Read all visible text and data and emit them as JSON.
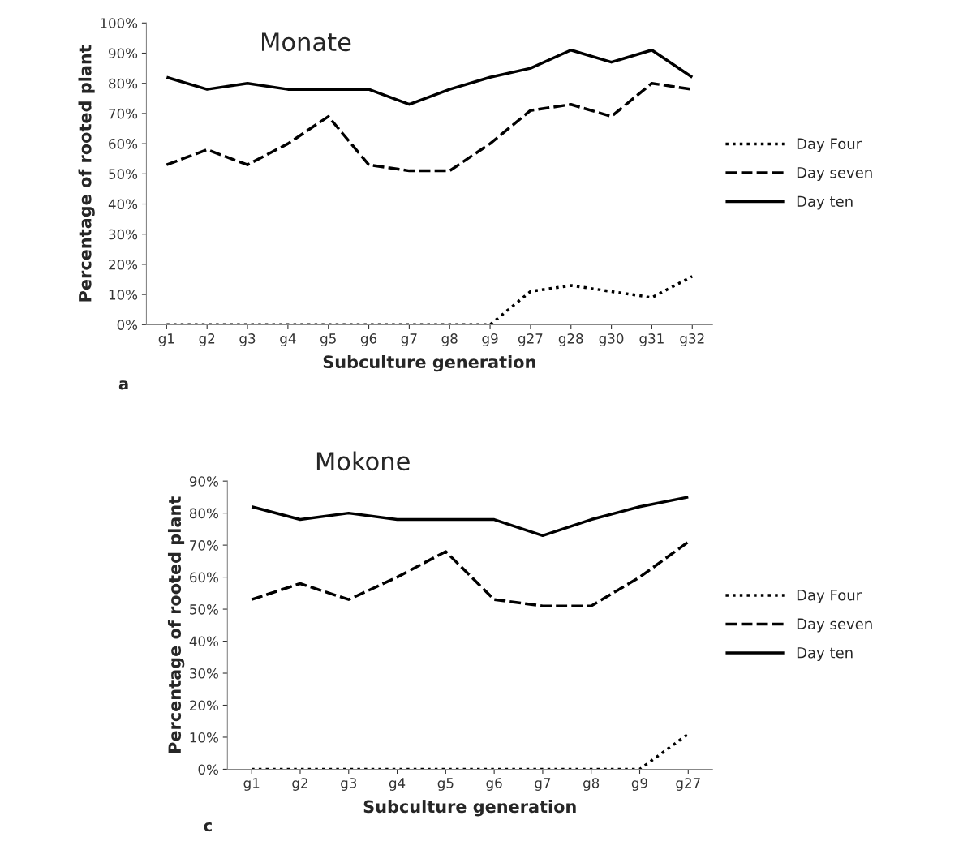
{
  "chart_data": [
    {
      "type": "line",
      "title": "Monate",
      "xlabel": "Subculture generation",
      "ylabel": "Percentage of rooted plant",
      "annotations": [
        "a"
      ],
      "categories": [
        "g1",
        "g2",
        "g3",
        "g4",
        "g5",
        "g6",
        "g7",
        "g8",
        "g9",
        "g27",
        "g28",
        "g30",
        "g31",
        "g32"
      ],
      "ylim": [
        0,
        100
      ],
      "yticks": [
        {
          "value": 0,
          "label": "0%"
        },
        {
          "value": 10,
          "label": "10%"
        },
        {
          "value": 20,
          "label": "20%"
        },
        {
          "value": 30,
          "label": "30%"
        },
        {
          "value": 40,
          "label": "40%"
        },
        {
          "value": 50,
          "label": "50%"
        },
        {
          "value": 60,
          "label": "60%"
        },
        {
          "value": 70,
          "label": "70%"
        },
        {
          "value": 80,
          "label": "80%"
        },
        {
          "value": 90,
          "label": "90%"
        },
        {
          "value": 100,
          "label": "100%"
        }
      ],
      "grid": false,
      "legend": "right",
      "series": [
        {
          "name": "Day Four",
          "color": "#000000",
          "line_style": "dotted",
          "values": [
            0,
            0,
            0,
            0,
            0,
            0,
            0,
            0,
            0,
            11,
            13,
            11,
            9,
            16
          ]
        },
        {
          "name": "Day seven",
          "color": "#000000",
          "line_style": "dashed",
          "values": [
            53,
            58,
            53,
            60,
            69,
            53,
            51,
            51,
            60,
            71,
            73,
            69,
            80,
            78
          ]
        },
        {
          "name": "Day ten",
          "color": "#000000",
          "line_style": "solid",
          "values": [
            82,
            78,
            80,
            78,
            78,
            78,
            73,
            78,
            82,
            85,
            91,
            87,
            91,
            82
          ]
        }
      ]
    },
    {
      "type": "line",
      "title": "Mokone",
      "xlabel": "Subculture generation",
      "ylabel": "Percentage of rooted plant",
      "annotations": [
        "c"
      ],
      "categories": [
        "g1",
        "g2",
        "g3",
        "g4",
        "g5",
        "g6",
        "g7",
        "g8",
        "g9",
        "g27"
      ],
      "ylim": [
        0,
        90
      ],
      "yticks": [
        {
          "value": 0,
          "label": "0%"
        },
        {
          "value": 10,
          "label": "10%"
        },
        {
          "value": 20,
          "label": "20%"
        },
        {
          "value": 30,
          "label": "30%"
        },
        {
          "value": 40,
          "label": "40%"
        },
        {
          "value": 50,
          "label": "50%"
        },
        {
          "value": 60,
          "label": "60%"
        },
        {
          "value": 70,
          "label": "70%"
        },
        {
          "value": 80,
          "label": "80%"
        },
        {
          "value": 90,
          "label": "90%"
        }
      ],
      "grid": false,
      "legend": "right",
      "series": [
        {
          "name": "Day Four",
          "color": "#000000",
          "line_style": "dotted",
          "values": [
            0,
            0,
            0,
            0,
            0,
            0,
            0,
            0,
            0,
            11
          ]
        },
        {
          "name": "Day seven",
          "color": "#000000",
          "line_style": "dashed",
          "values": [
            53,
            58,
            53,
            60,
            68,
            53,
            51,
            51,
            60,
            71
          ]
        },
        {
          "name": "Day ten",
          "color": "#000000",
          "line_style": "solid",
          "values": [
            82,
            78,
            80,
            78,
            78,
            78,
            73,
            78,
            82,
            85
          ]
        }
      ]
    }
  ]
}
